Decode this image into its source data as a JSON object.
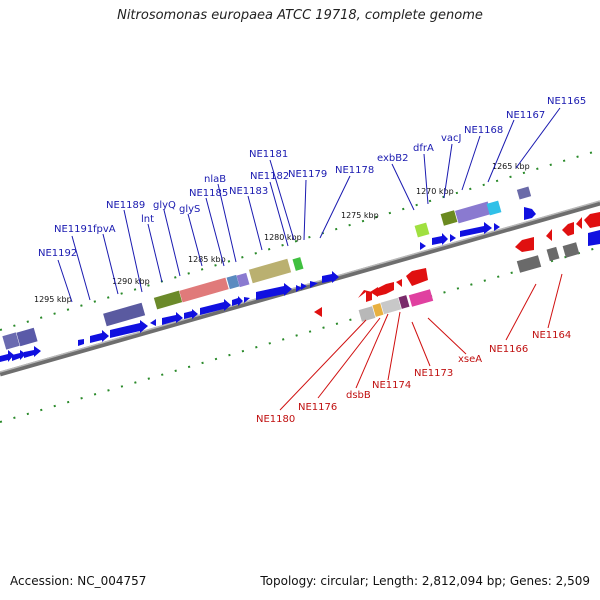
{
  "title": "Nitrosomonas europaea ATCC 19718, complete genome",
  "footer": {
    "accession": "Accession: NC_004757",
    "summary": "Topology: circular; Length: 2,812,094 bp; Genes: 2,509"
  },
  "ruler_labels": [
    "1295 kbp",
    "1290 kbp",
    "1285 kbp",
    "1280 kbp",
    "1275 kbp",
    "1270 kbp",
    "1265 kbp"
  ],
  "gene_labels_top": [
    "NE1192",
    "NE1191",
    "fpvA",
    "NE1189",
    "lnt",
    "glyQ",
    "glyS",
    "NE1185",
    "nlaB",
    "NE1183",
    "NE1182",
    "NE1181",
    "NE1179",
    "NE1178",
    "exbB2",
    "dfrA",
    "vacJ",
    "NE1168",
    "NE1167",
    "NE1165"
  ],
  "gene_labels_bottom": [
    "NE1180",
    "NE1176",
    "dsbB",
    "NE1174",
    "NE1173",
    "xseA",
    "NE1166",
    "NE1164"
  ],
  "colors": {
    "forward_strand": "#1010e0",
    "reverse_strand": "#e01010",
    "top_label": "#1a1ab0",
    "bottom_label": "#c01010",
    "tick": "#2a8a2a",
    "backbone": "#808080"
  }
}
